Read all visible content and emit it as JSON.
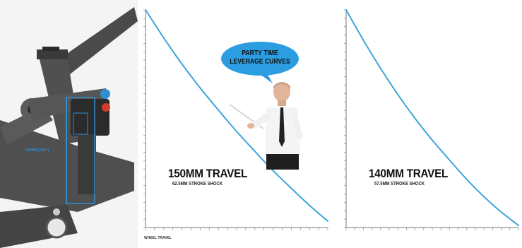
{
  "bubble": {
    "text": "PARTY TIME\nLEVERAGE CURVES"
  },
  "chart_data": [
    {
      "type": "line",
      "title": "150MM TRAVEL",
      "subtitle": "62.5MM STROKE SHOCK",
      "xlabel": "WHEEL TRAVEL",
      "ylabel": "",
      "x": [
        0,
        15,
        30,
        45,
        60,
        75,
        90,
        105,
        120,
        135,
        150
      ],
      "series": [
        {
          "values": [
            1.0,
            0.87,
            0.75,
            0.64,
            0.54,
            0.44,
            0.35,
            0.26,
            0.18,
            0.1,
            0.03
          ]
        }
      ],
      "xlim": [
        0,
        150
      ],
      "ylim": [
        0,
        1
      ],
      "grid": false,
      "color": "#3aa6dd"
    },
    {
      "type": "line",
      "title": "140MM TRAVEL",
      "subtitle": "57.5MM STROKE SHOCK",
      "xlabel": "",
      "ylabel": "",
      "x": [
        0,
        14,
        28,
        42,
        56,
        70,
        84,
        98,
        112,
        126,
        140
      ],
      "series": [
        {
          "values": [
            1.0,
            0.86,
            0.73,
            0.61,
            0.5,
            0.4,
            0.31,
            0.22,
            0.14,
            0.07,
            0.01
          ]
        }
      ],
      "xlim": [
        0,
        140
      ],
      "ylim": [
        0,
        1
      ],
      "grid": false,
      "color": "#3aa6dd"
    }
  ],
  "photo": {
    "measure_label": "200MM (7.87\")",
    "accent": "#2f8fd0"
  }
}
